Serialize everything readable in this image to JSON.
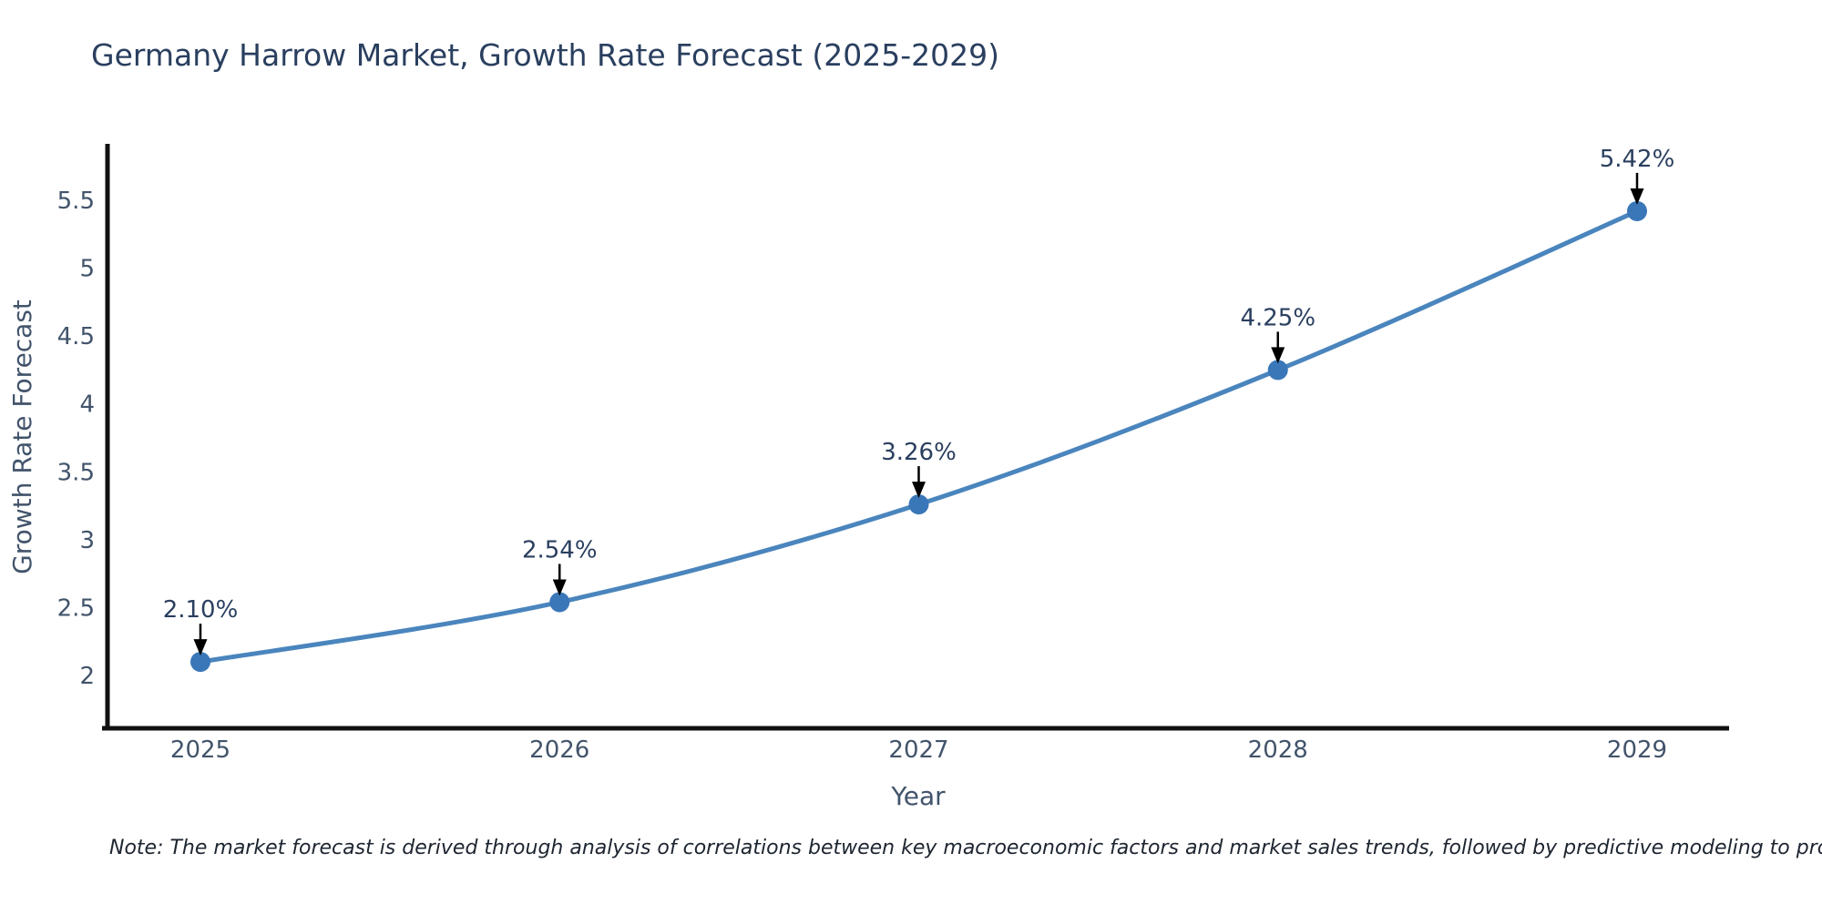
{
  "title": "Germany Harrow Market, Growth Rate Forecast (2025-2029)",
  "note": "Note: The market forecast is derived through analysis of correlations between key macroeconomic factors and market sales trends, followed by predictive modeling to project future sales",
  "colors": {
    "background": "#ffffff",
    "axis": "#111111",
    "tick_text": "#42546b",
    "title_text": "#2a3f5f",
    "annotation_text": "#2a3f5f",
    "note_text": "#1d2530",
    "arrow": "#000000",
    "line": "#4a85bd",
    "marker": "#3a77b8"
  },
  "chart_data": {
    "type": "line",
    "title": "Germany Harrow Market, Growth Rate Forecast (2025-2029)",
    "xlabel": "Year",
    "ylabel": "Growth Rate Forecast",
    "categories": [
      "2025",
      "2026",
      "2027",
      "2028",
      "2029"
    ],
    "values": [
      2.1,
      2.54,
      3.26,
      4.25,
      5.42
    ],
    "point_labels": [
      "2.10%",
      "2.54%",
      "3.26%",
      "4.25%",
      "5.42%"
    ],
    "yticks": [
      2,
      2.5,
      3,
      3.5,
      4,
      4.5,
      5,
      5.5
    ],
    "ytick_labels": [
      "2",
      "2.5",
      "3",
      "3.5",
      "4",
      "4.5",
      "5",
      "5.5"
    ],
    "ylim": [
      1.6,
      5.95
    ],
    "grid": false,
    "legend": false,
    "marker_style": "circle",
    "annotation_arrows": true
  }
}
